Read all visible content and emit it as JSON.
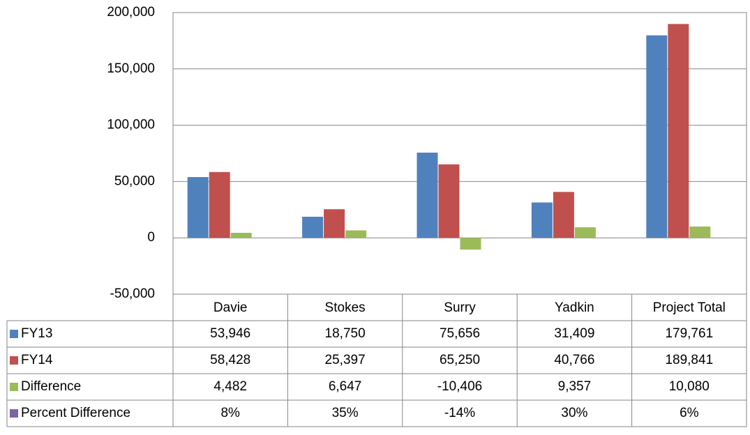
{
  "chart_data": {
    "type": "bar",
    "categories": [
      "Davie",
      "Stokes",
      "Surry",
      "Yadkin",
      "Project Total"
    ],
    "series": [
      {
        "name": "FY13",
        "color": "#4f81bd",
        "values": [
          53946,
          18750,
          75656,
          31409,
          179761
        ],
        "value_labels": [
          "53,946",
          "18,750",
          "75,656",
          "31,409",
          "179,761"
        ]
      },
      {
        "name": "FY14",
        "color": "#c0504d",
        "values": [
          58428,
          25397,
          65250,
          40766,
          189841
        ],
        "value_labels": [
          "58,428",
          "25,397",
          "65,250",
          "40,766",
          "189,841"
        ]
      },
      {
        "name": "Difference",
        "color": "#9bbb59",
        "values": [
          4482,
          6647,
          -10406,
          9357,
          10080
        ],
        "value_labels": [
          "4,482",
          "6,647",
          "-10,406",
          "9,357",
          "10,080"
        ]
      },
      {
        "name": "Percent Difference",
        "color": "#8064a2",
        "values": [
          8,
          35,
          -14,
          30,
          6
        ],
        "value_labels": [
          "8%",
          "35%",
          "-14%",
          "30%",
          "6%"
        ]
      }
    ],
    "ylim": [
      -50000,
      200000
    ],
    "yticks": [
      {
        "value": -50000,
        "label": "-50,000"
      },
      0,
      {
        "value": 50000,
        "label": "50,000"
      },
      {
        "value": 100000,
        "label": "100,000"
      },
      {
        "value": 150000,
        "label": "150,000"
      },
      {
        "value": 200000,
        "label": "200,000"
      }
    ],
    "grid": true,
    "data_table": true
  }
}
